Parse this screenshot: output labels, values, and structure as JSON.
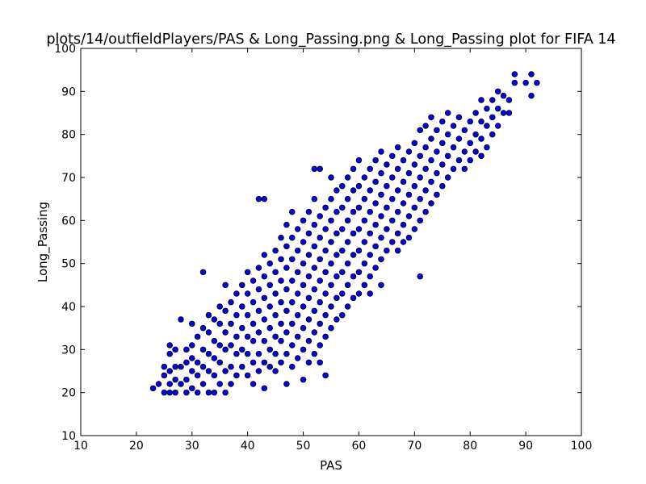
{
  "chart_data": {
    "type": "scatter",
    "title": "plots/14/outfieldPlayers/PAS & Long_Passing.png & Long_Passing plot for FIFA 14",
    "xlabel": "PAS",
    "ylabel": "Long_Passing",
    "xlim": [
      10,
      100
    ],
    "ylim": [
      10,
      100
    ],
    "xticks": [
      10,
      20,
      30,
      40,
      50,
      60,
      70,
      80,
      90,
      100
    ],
    "yticks": [
      10,
      20,
      30,
      40,
      50,
      60,
      70,
      80,
      90,
      100
    ],
    "grid": false,
    "marker_color": "#0000ff",
    "marker_edge": "#000000",
    "points": [
      [
        23,
        21
      ],
      [
        24,
        22
      ],
      [
        25,
        20
      ],
      [
        25,
        24
      ],
      [
        25,
        26
      ],
      [
        26,
        20
      ],
      [
        26,
        22
      ],
      [
        26,
        25
      ],
      [
        26,
        29
      ],
      [
        26,
        31
      ],
      [
        27,
        20
      ],
      [
        27,
        23
      ],
      [
        27,
        26
      ],
      [
        27,
        30
      ],
      [
        28,
        22
      ],
      [
        28,
        26
      ],
      [
        28,
        37
      ],
      [
        29,
        20
      ],
      [
        29,
        23
      ],
      [
        29,
        27
      ],
      [
        29,
        30
      ],
      [
        30,
        21
      ],
      [
        30,
        25
      ],
      [
        30,
        28
      ],
      [
        30,
        31
      ],
      [
        30,
        36
      ],
      [
        31,
        20
      ],
      [
        31,
        24
      ],
      [
        31,
        27
      ],
      [
        31,
        33
      ],
      [
        32,
        22
      ],
      [
        32,
        26
      ],
      [
        32,
        30
      ],
      [
        32,
        35
      ],
      [
        32,
        48
      ],
      [
        33,
        20
      ],
      [
        33,
        25
      ],
      [
        33,
        29
      ],
      [
        33,
        34
      ],
      [
        33,
        38
      ],
      [
        34,
        20
      ],
      [
        34,
        24
      ],
      [
        34,
        28
      ],
      [
        34,
        32
      ],
      [
        34,
        37
      ],
      [
        35,
        22
      ],
      [
        35,
        27
      ],
      [
        35,
        31
      ],
      [
        35,
        36
      ],
      [
        35,
        40
      ],
      [
        36,
        20
      ],
      [
        36,
        25
      ],
      [
        36,
        30
      ],
      [
        36,
        34
      ],
      [
        36,
        39
      ],
      [
        36,
        45
      ],
      [
        37,
        22
      ],
      [
        37,
        26
      ],
      [
        37,
        31
      ],
      [
        37,
        36
      ],
      [
        37,
        41
      ],
      [
        38,
        24
      ],
      [
        38,
        29
      ],
      [
        38,
        33
      ],
      [
        38,
        38
      ],
      [
        38,
        43
      ],
      [
        39,
        26
      ],
      [
        39,
        30
      ],
      [
        39,
        35
      ],
      [
        39,
        40
      ],
      [
        39,
        45
      ],
      [
        40,
        24
      ],
      [
        40,
        29
      ],
      [
        40,
        33
      ],
      [
        40,
        38
      ],
      [
        40,
        43
      ],
      [
        40,
        48
      ],
      [
        41,
        22
      ],
      [
        41,
        27
      ],
      [
        41,
        32
      ],
      [
        41,
        36
      ],
      [
        41,
        41
      ],
      [
        41,
        46
      ],
      [
        42,
        25
      ],
      [
        42,
        29
      ],
      [
        42,
        34
      ],
      [
        42,
        39
      ],
      [
        42,
        44
      ],
      [
        42,
        49
      ],
      [
        42,
        65
      ],
      [
        43,
        21
      ],
      [
        43,
        27
      ],
      [
        43,
        32
      ],
      [
        43,
        37
      ],
      [
        43,
        42
      ],
      [
        43,
        47
      ],
      [
        43,
        52
      ],
      [
        43,
        65
      ],
      [
        44,
        26
      ],
      [
        44,
        30
      ],
      [
        44,
        35
      ],
      [
        44,
        40
      ],
      [
        44,
        45
      ],
      [
        44,
        50
      ],
      [
        45,
        25
      ],
      [
        45,
        29
      ],
      [
        45,
        33
      ],
      [
        45,
        38
      ],
      [
        45,
        43
      ],
      [
        45,
        48
      ],
      [
        45,
        53
      ],
      [
        46,
        27
      ],
      [
        46,
        32
      ],
      [
        46,
        36
      ],
      [
        46,
        41
      ],
      [
        46,
        46
      ],
      [
        46,
        51
      ],
      [
        46,
        56
      ],
      [
        47,
        22
      ],
      [
        47,
        29
      ],
      [
        47,
        34
      ],
      [
        47,
        39
      ],
      [
        47,
        44
      ],
      [
        47,
        49
      ],
      [
        47,
        54
      ],
      [
        47,
        59
      ],
      [
        48,
        26
      ],
      [
        48,
        31
      ],
      [
        48,
        36
      ],
      [
        48,
        41
      ],
      [
        48,
        46
      ],
      [
        48,
        51
      ],
      [
        48,
        56
      ],
      [
        48,
        62
      ],
      [
        49,
        28
      ],
      [
        49,
        33
      ],
      [
        49,
        38
      ],
      [
        49,
        43
      ],
      [
        49,
        48
      ],
      [
        49,
        53
      ],
      [
        49,
        58
      ],
      [
        50,
        23
      ],
      [
        50,
        30
      ],
      [
        50,
        35
      ],
      [
        50,
        40
      ],
      [
        50,
        45
      ],
      [
        50,
        50
      ],
      [
        50,
        55
      ],
      [
        50,
        60
      ],
      [
        51,
        27
      ],
      [
        51,
        32
      ],
      [
        51,
        37
      ],
      [
        51,
        42
      ],
      [
        51,
        47
      ],
      [
        51,
        52
      ],
      [
        51,
        57
      ],
      [
        51,
        62
      ],
      [
        52,
        29
      ],
      [
        52,
        34
      ],
      [
        52,
        39
      ],
      [
        52,
        44
      ],
      [
        52,
        49
      ],
      [
        52,
        54
      ],
      [
        52,
        59
      ],
      [
        52,
        65
      ],
      [
        52,
        72
      ],
      [
        53,
        27
      ],
      [
        53,
        31
      ],
      [
        53,
        36
      ],
      [
        53,
        41
      ],
      [
        53,
        46
      ],
      [
        53,
        51
      ],
      [
        53,
        56
      ],
      [
        53,
        61
      ],
      [
        53,
        72
      ],
      [
        54,
        24
      ],
      [
        54,
        33
      ],
      [
        54,
        38
      ],
      [
        54,
        43
      ],
      [
        54,
        48
      ],
      [
        54,
        53
      ],
      [
        54,
        58
      ],
      [
        54,
        63
      ],
      [
        55,
        35
      ],
      [
        55,
        40
      ],
      [
        55,
        45
      ],
      [
        55,
        50
      ],
      [
        55,
        55
      ],
      [
        55,
        60
      ],
      [
        55,
        65
      ],
      [
        55,
        70
      ],
      [
        56,
        37
      ],
      [
        56,
        42
      ],
      [
        56,
        47
      ],
      [
        56,
        52
      ],
      [
        56,
        57
      ],
      [
        56,
        62
      ],
      [
        56,
        67
      ],
      [
        57,
        38
      ],
      [
        57,
        43
      ],
      [
        57,
        48
      ],
      [
        57,
        53
      ],
      [
        57,
        58
      ],
      [
        57,
        63
      ],
      [
        57,
        68
      ],
      [
        58,
        40
      ],
      [
        58,
        45
      ],
      [
        58,
        50
      ],
      [
        58,
        55
      ],
      [
        58,
        60
      ],
      [
        58,
        65
      ],
      [
        58,
        70
      ],
      [
        59,
        42
      ],
      [
        59,
        47
      ],
      [
        59,
        52
      ],
      [
        59,
        57
      ],
      [
        59,
        62
      ],
      [
        59,
        67
      ],
      [
        59,
        72
      ],
      [
        60,
        43
      ],
      [
        60,
        48
      ],
      [
        60,
        53
      ],
      [
        60,
        58
      ],
      [
        60,
        63
      ],
      [
        60,
        68
      ],
      [
        60,
        74
      ],
      [
        61,
        45
      ],
      [
        61,
        50
      ],
      [
        61,
        55
      ],
      [
        61,
        60
      ],
      [
        61,
        65
      ],
      [
        61,
        70
      ],
      [
        62,
        43
      ],
      [
        62,
        47
      ],
      [
        62,
        52
      ],
      [
        62,
        57
      ],
      [
        62,
        62
      ],
      [
        62,
        67
      ],
      [
        62,
        72
      ],
      [
        63,
        49
      ],
      [
        63,
        54
      ],
      [
        63,
        59
      ],
      [
        63,
        64
      ],
      [
        63,
        69
      ],
      [
        63,
        74
      ],
      [
        64,
        45
      ],
      [
        64,
        51
      ],
      [
        64,
        56
      ],
      [
        64,
        61
      ],
      [
        64,
        66
      ],
      [
        64,
        71
      ],
      [
        64,
        76
      ],
      [
        65,
        53
      ],
      [
        65,
        58
      ],
      [
        65,
        63
      ],
      [
        65,
        68
      ],
      [
        65,
        73
      ],
      [
        66,
        55
      ],
      [
        66,
        60
      ],
      [
        66,
        65
      ],
      [
        66,
        70
      ],
      [
        66,
        75
      ],
      [
        67,
        53
      ],
      [
        67,
        57
      ],
      [
        67,
        62
      ],
      [
        67,
        67
      ],
      [
        67,
        72
      ],
      [
        67,
        77
      ],
      [
        68,
        55
      ],
      [
        68,
        59
      ],
      [
        68,
        64
      ],
      [
        68,
        69
      ],
      [
        68,
        74
      ],
      [
        69,
        56
      ],
      [
        69,
        61
      ],
      [
        69,
        66
      ],
      [
        69,
        71
      ],
      [
        69,
        76
      ],
      [
        70,
        58
      ],
      [
        70,
        63
      ],
      [
        70,
        68
      ],
      [
        70,
        73
      ],
      [
        70,
        78
      ],
      [
        71,
        47
      ],
      [
        71,
        60
      ],
      [
        71,
        65
      ],
      [
        71,
        70
      ],
      [
        71,
        75
      ],
      [
        71,
        81
      ],
      [
        72,
        62
      ],
      [
        72,
        67
      ],
      [
        72,
        72
      ],
      [
        72,
        77
      ],
      [
        72,
        82
      ],
      [
        73,
        64
      ],
      [
        73,
        69
      ],
      [
        73,
        74
      ],
      [
        73,
        79
      ],
      [
        73,
        84
      ],
      [
        74,
        66
      ],
      [
        74,
        71
      ],
      [
        74,
        76
      ],
      [
        74,
        81
      ],
      [
        75,
        68
      ],
      [
        75,
        73
      ],
      [
        75,
        78
      ],
      [
        75,
        83
      ],
      [
        76,
        70
      ],
      [
        76,
        75
      ],
      [
        76,
        80
      ],
      [
        76,
        85
      ],
      [
        77,
        72
      ],
      [
        77,
        77
      ],
      [
        77,
        82
      ],
      [
        78,
        74
      ],
      [
        78,
        79
      ],
      [
        78,
        84
      ],
      [
        79,
        72
      ],
      [
        79,
        76
      ],
      [
        79,
        81
      ],
      [
        80,
        74
      ],
      [
        80,
        78
      ],
      [
        80,
        83
      ],
      [
        81,
        76
      ],
      [
        81,
        80
      ],
      [
        81,
        85
      ],
      [
        82,
        75
      ],
      [
        82,
        79
      ],
      [
        82,
        83
      ],
      [
        82,
        88
      ],
      [
        83,
        77
      ],
      [
        83,
        82
      ],
      [
        83,
        86
      ],
      [
        84,
        80
      ],
      [
        84,
        84
      ],
      [
        84,
        88
      ],
      [
        85,
        82
      ],
      [
        85,
        86
      ],
      [
        85,
        90
      ],
      [
        86,
        85
      ],
      [
        86,
        89
      ],
      [
        87,
        85
      ],
      [
        87,
        88
      ],
      [
        88,
        92
      ],
      [
        88,
        94
      ],
      [
        90,
        92
      ],
      [
        91,
        89
      ],
      [
        91,
        94
      ],
      [
        92,
        92
      ]
    ]
  }
}
